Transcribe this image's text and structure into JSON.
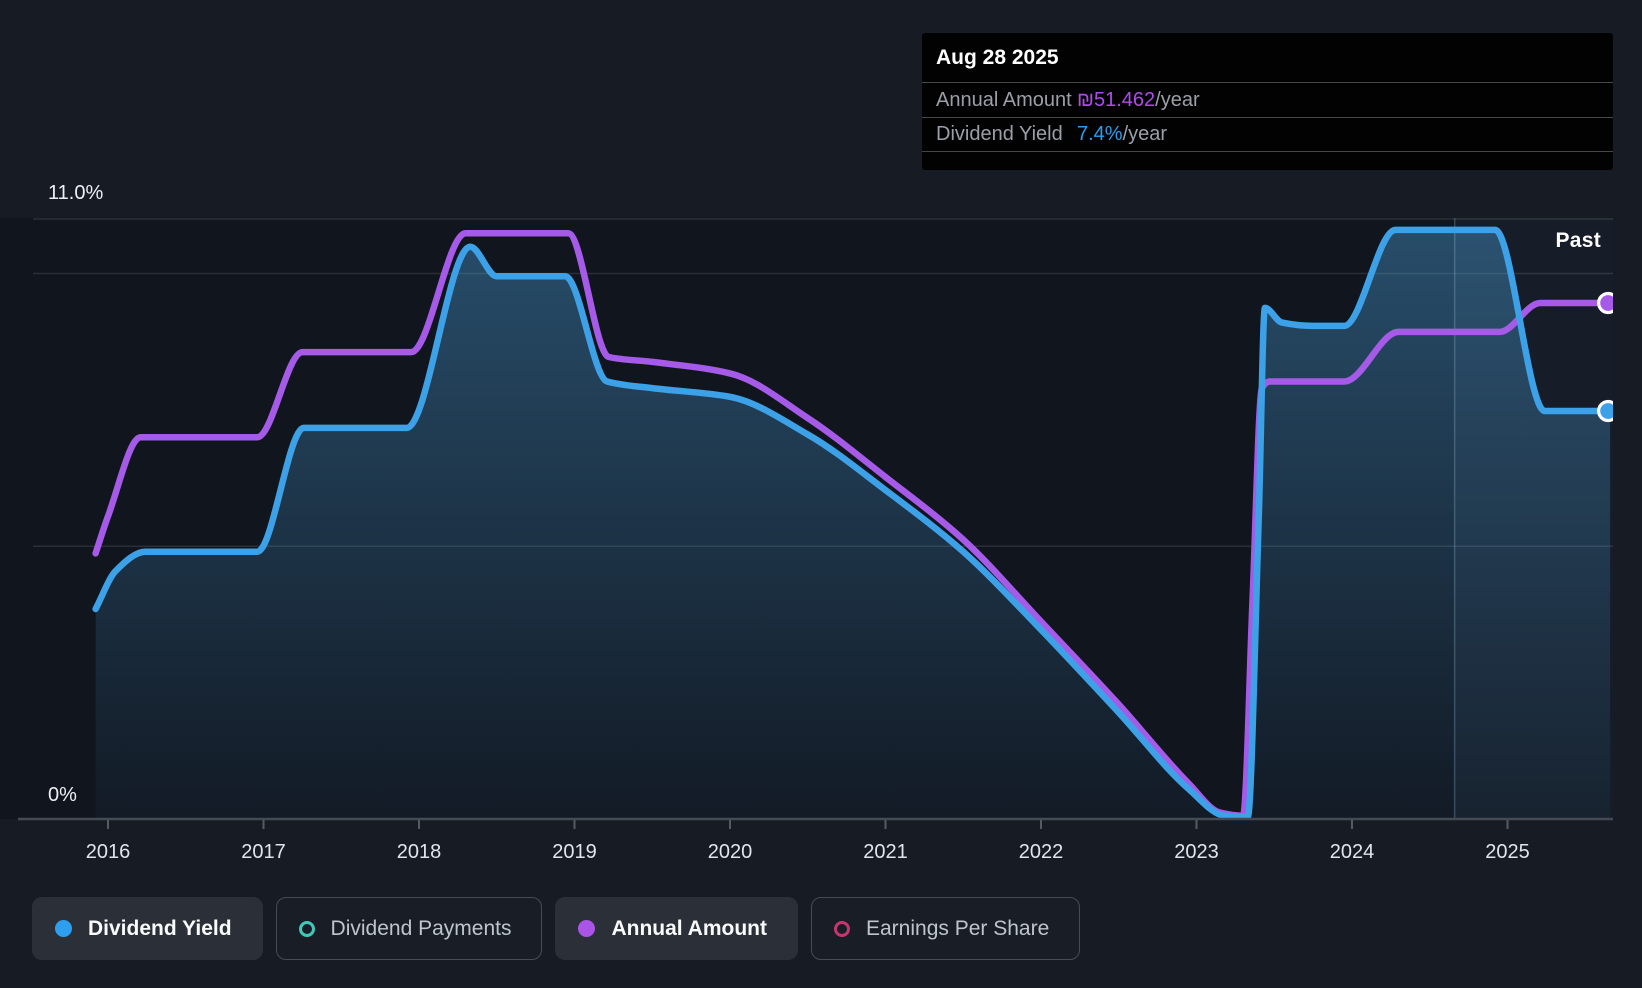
{
  "tooltip": {
    "date": "Aug 28 2025",
    "rows": [
      {
        "label": "Annual Amount",
        "value": "₪51.462",
        "suffix": "/year",
        "value_color": "#ad4ce8"
      },
      {
        "label": "Dividend Yield",
        "value": "7.4%",
        "suffix": "/year",
        "value_color": "#2b9fee"
      }
    ]
  },
  "y_axis": {
    "top_label": "11.0%",
    "zero_label": "0%"
  },
  "x_axis": {
    "years": [
      "2016",
      "2017",
      "2018",
      "2019",
      "2020",
      "2021",
      "2022",
      "2023",
      "2024",
      "2025"
    ]
  },
  "annotations": {
    "past": "Past"
  },
  "legend": {
    "items": [
      {
        "label": "Dividend Yield",
        "marker": "filled",
        "color": "#2e9ff0",
        "active": true
      },
      {
        "label": "Dividend Payments",
        "marker": "open",
        "color": "#41c9b8",
        "active": false
      },
      {
        "label": "Annual Amount",
        "marker": "filled",
        "color": "#ab54e8",
        "active": true
      },
      {
        "label": "Earnings Per Share",
        "marker": "open",
        "color": "#c73571",
        "active": false
      }
    ]
  },
  "chart_data": {
    "type": "area",
    "x_unit": "year",
    "x_range": [
      2015.92,
      2025.66
    ],
    "ylim": [
      0,
      11
    ],
    "y_gridlines_pct": [
      11,
      10,
      5,
      0
    ],
    "today_x": 2025.66,
    "past_band_start_x": 2024.66,
    "grid_color": "#2a2f37",
    "axis_color": "#454a52",
    "tick_color": "#565b63",
    "plot_bg": "#10151e",
    "band_color": "rgba(130,180,230,0.055)",
    "band_line_color": "rgba(170,210,240,0.25)",
    "fill_color_rgb": "73,157,214",
    "series": [
      {
        "name": "Annual Amount",
        "color": "#a55be8",
        "fill": false,
        "end_marker": true,
        "points_pct": [
          [
            2015.92,
            4.87
          ],
          [
            2016.0,
            5.55
          ],
          [
            2016.21,
            7.0
          ],
          [
            2016.96,
            7.0
          ],
          [
            2017.25,
            8.56
          ],
          [
            2017.95,
            8.56
          ],
          [
            2018.3,
            10.74
          ],
          [
            2018.96,
            10.74
          ],
          [
            2019.22,
            8.47
          ],
          [
            2019.5,
            8.38
          ],
          [
            2020.0,
            8.17
          ],
          [
            2020.5,
            7.35
          ],
          [
            2021.0,
            6.27
          ],
          [
            2021.5,
            5.12
          ],
          [
            2022.0,
            3.62
          ],
          [
            2022.5,
            2.1
          ],
          [
            2022.95,
            0.65
          ],
          [
            2023.15,
            0.12
          ],
          [
            2023.3,
            0.06
          ],
          [
            2023.36,
            4.0
          ],
          [
            2023.42,
            7.9
          ],
          [
            2023.47,
            8.02
          ],
          [
            2023.95,
            8.02
          ],
          [
            2024.3,
            8.93
          ],
          [
            2024.95,
            8.93
          ],
          [
            2025.21,
            9.46
          ],
          [
            2025.66,
            9.46
          ]
        ]
      },
      {
        "name": "Dividend Yield",
        "color": "#3da1e8",
        "fill": true,
        "end_marker": true,
        "points_pct": [
          [
            2015.92,
            3.85
          ],
          [
            2016.05,
            4.55
          ],
          [
            2016.24,
            4.9
          ],
          [
            2016.96,
            4.9
          ],
          [
            2017.26,
            7.17
          ],
          [
            2017.92,
            7.17
          ],
          [
            2018.33,
            10.49
          ],
          [
            2018.5,
            9.95
          ],
          [
            2018.94,
            9.95
          ],
          [
            2019.21,
            8.02
          ],
          [
            2019.5,
            7.9
          ],
          [
            2020.0,
            7.74
          ],
          [
            2020.5,
            7.05
          ],
          [
            2021.0,
            6.03
          ],
          [
            2021.5,
            4.9
          ],
          [
            2022.0,
            3.47
          ],
          [
            2022.5,
            1.95
          ],
          [
            2022.95,
            0.55
          ],
          [
            2023.18,
            0.06
          ],
          [
            2023.33,
            0.04
          ],
          [
            2023.4,
            5.5
          ],
          [
            2023.44,
            9.37
          ],
          [
            2023.55,
            9.1
          ],
          [
            2023.75,
            9.04
          ],
          [
            2023.95,
            9.04
          ],
          [
            2024.28,
            10.8
          ],
          [
            2024.92,
            10.8
          ],
          [
            2025.24,
            7.48
          ],
          [
            2025.66,
            7.48
          ]
        ]
      }
    ]
  }
}
